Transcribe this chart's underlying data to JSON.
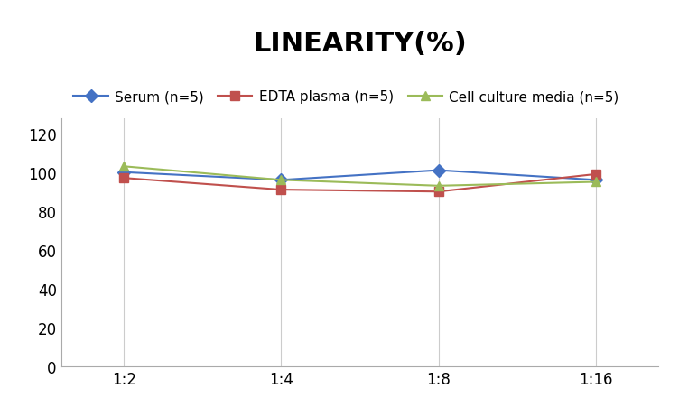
{
  "title": "LINEARITY(%)",
  "x_labels": [
    "1:2",
    "1:4",
    "1:8",
    "1:16"
  ],
  "x_positions": [
    0,
    1,
    2,
    3
  ],
  "series": [
    {
      "label": "Serum (n=5)",
      "values": [
        100,
        96,
        101,
        96
      ],
      "color": "#4472C4",
      "marker": "D",
      "marker_color": "#4472C4"
    },
    {
      "label": "EDTA plasma (n=5)",
      "values": [
        97,
        91,
        90,
        99
      ],
      "color": "#C0504D",
      "marker": "s",
      "marker_color": "#C0504D"
    },
    {
      "label": "Cell culture media (n=5)",
      "values": [
        103,
        96,
        93,
        95
      ],
      "color": "#9BBB59",
      "marker": "^",
      "marker_color": "#9BBB59"
    }
  ],
  "ylim": [
    0,
    128
  ],
  "yticks": [
    0,
    20,
    40,
    60,
    80,
    100,
    120
  ],
  "background_color": "#ffffff",
  "title_fontsize": 22,
  "legend_fontsize": 11,
  "tick_fontsize": 12
}
